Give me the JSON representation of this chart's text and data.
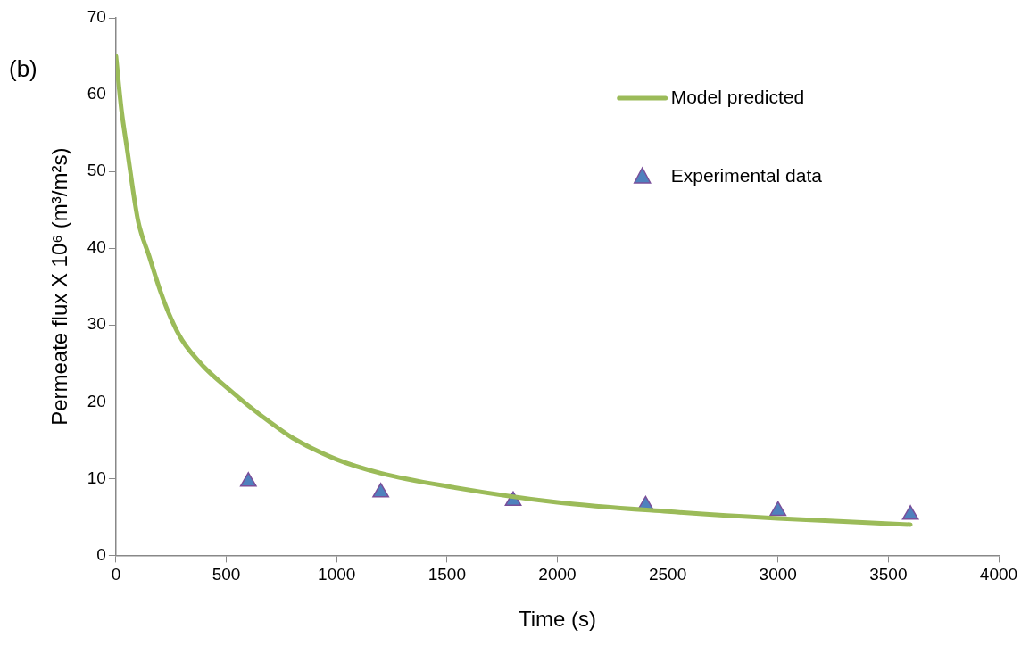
{
  "chart_data": {
    "type": "line",
    "xlabel": "Time (s)",
    "ylabel": "Permeate flux X 10⁶ (m³/m²s)",
    "annotations": [
      "(b)"
    ],
    "xlim": [
      0,
      4000
    ],
    "xticks": [
      0,
      500,
      1000,
      1500,
      2000,
      2500,
      3000,
      3500,
      4000
    ],
    "ylim": [
      0,
      70
    ],
    "yticks": [
      0,
      10,
      20,
      30,
      40,
      50,
      60,
      70
    ],
    "grid": false,
    "legend": "top right",
    "series": [
      {
        "name": "Model predicted",
        "color": "#9bbb59",
        "marker": "none",
        "x": [
          0,
          25,
          50,
          100,
          150,
          200,
          250,
          300,
          400,
          500,
          600,
          700,
          800,
          1000,
          1200,
          1500,
          2000,
          2500,
          3000,
          3600
        ],
        "values": [
          65,
          58,
          53,
          43.6,
          39,
          34.5,
          30.8,
          28,
          24.5,
          21.9,
          19.5,
          17.3,
          15.3,
          12.5,
          10.7,
          9,
          6.9,
          5.7,
          4.8,
          4
        ]
      },
      {
        "name": "Experimental data",
        "type": "scatter",
        "color": "#4f81bd",
        "marker": "triangle",
        "x": [
          600,
          1200,
          1800,
          2400,
          3000,
          3600
        ],
        "values": [
          9.6,
          8.2,
          7.1,
          6.5,
          5.8,
          5.3
        ]
      }
    ]
  }
}
